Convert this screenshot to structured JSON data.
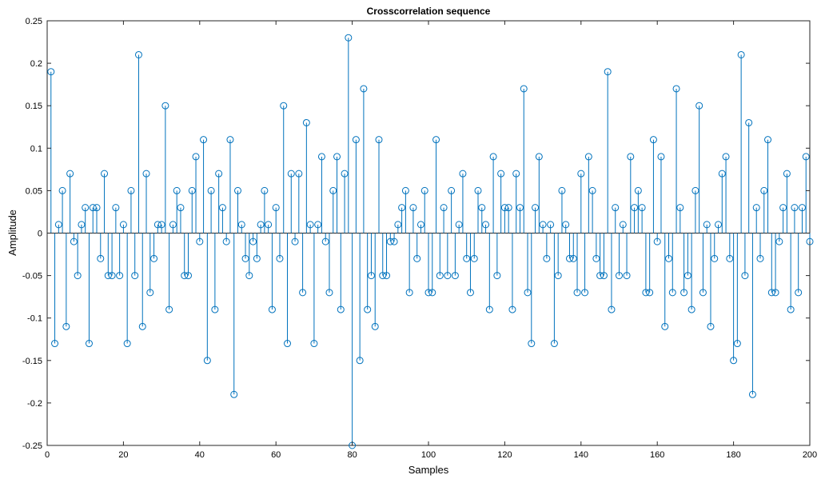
{
  "chart_data": {
    "type": "stem",
    "title": "Crosscorrelation sequence",
    "xlabel": "Samples",
    "ylabel": "Amplitude",
    "xlim": [
      0,
      200
    ],
    "ylim": [
      -0.25,
      0.25
    ],
    "xticks": [
      0,
      20,
      40,
      60,
      80,
      100,
      120,
      140,
      160,
      180,
      200
    ],
    "yticks": [
      -0.25,
      -0.2,
      -0.15,
      -0.1,
      -0.05,
      0,
      0.05,
      0.1,
      0.15,
      0.2,
      0.25
    ],
    "xtick_labels": [
      "0",
      "20",
      "40",
      "60",
      "80",
      "100",
      "120",
      "140",
      "160",
      "180",
      "200"
    ],
    "ytick_labels": [
      "-0.25",
      "-0.2",
      "-0.15",
      "-0.1",
      "-0.05",
      "0",
      "0.05",
      "0.1",
      "0.15",
      "0.2",
      "0.25"
    ],
    "grid": false,
    "series": [
      {
        "x": [
          1,
          2,
          3,
          4,
          5,
          6,
          7,
          8,
          9,
          10,
          11,
          12,
          13,
          14,
          15,
          16,
          17,
          18,
          19,
          20,
          21,
          22,
          23,
          24,
          25,
          26,
          27,
          28,
          29,
          30,
          31,
          32,
          33,
          34,
          35,
          36,
          37,
          38,
          39,
          40,
          41,
          42,
          43,
          44,
          45,
          46,
          47,
          48,
          49,
          50,
          51,
          52,
          53,
          54,
          55,
          56,
          57,
          58,
          59,
          60,
          61,
          62,
          63,
          64,
          65,
          66,
          67,
          68,
          69,
          70,
          71,
          72,
          73,
          74,
          75,
          76,
          77,
          78,
          79,
          80,
          81,
          82,
          83,
          84,
          85,
          86,
          87,
          88,
          89,
          90,
          91,
          92,
          93,
          94,
          95,
          96,
          97,
          98,
          99,
          100,
          101,
          102,
          103,
          104,
          105,
          106,
          107,
          108,
          109,
          110,
          111,
          112,
          113,
          114,
          115,
          116,
          117,
          118,
          119,
          120,
          121,
          122,
          123,
          124,
          125,
          126,
          127,
          128,
          129,
          130,
          131,
          132,
          133,
          134,
          135,
          136,
          137,
          138,
          139,
          140,
          141,
          142,
          143,
          144,
          145,
          146,
          147,
          148,
          149,
          150,
          151,
          152,
          153,
          154,
          155,
          156,
          157,
          158,
          159,
          160,
          161,
          162,
          163,
          164,
          165,
          166,
          167,
          168,
          169,
          170,
          171,
          172,
          173,
          174,
          175,
          176,
          177,
          178,
          179,
          180,
          181,
          182,
          183,
          184,
          185,
          186,
          187,
          188,
          189,
          190,
          191,
          192,
          193,
          194,
          195,
          196,
          197,
          198,
          199,
          200
        ],
        "values": [
          0.19,
          -0.13,
          0.01,
          0.05,
          -0.11,
          0.07,
          -0.01,
          -0.05,
          0.01,
          0.03,
          -0.13,
          0.03,
          0.03,
          -0.03,
          0.07,
          -0.05,
          -0.05,
          0.03,
          -0.05,
          0.01,
          -0.13,
          0.05,
          -0.05,
          0.21,
          -0.11,
          0.07,
          -0.07,
          -0.03,
          0.01,
          0.01,
          0.15,
          -0.09,
          0.01,
          0.05,
          0.03,
          -0.05,
          -0.05,
          0.05,
          0.09,
          -0.01,
          0.11,
          -0.15,
          0.05,
          -0.09,
          0.07,
          0.03,
          -0.01,
          0.11,
          -0.19,
          0.05,
          0.01,
          -0.03,
          -0.05,
          -0.01,
          -0.03,
          0.01,
          0.05,
          0.01,
          -0.09,
          0.03,
          -0.03,
          0.15,
          -0.13,
          0.07,
          -0.01,
          0.07,
          -0.07,
          0.13,
          0.01,
          -0.13,
          0.01,
          0.09,
          -0.01,
          -0.07,
          0.05,
          0.09,
          -0.09,
          0.07,
          0.23,
          -0.25,
          0.11,
          -0.15,
          0.17,
          -0.09,
          -0.05,
          -0.11,
          0.11,
          -0.05,
          -0.05,
          -0.01,
          -0.01,
          0.01,
          0.03,
          0.05,
          -0.07,
          0.03,
          -0.03,
          0.01,
          0.05,
          -0.07,
          -0.07,
          0.11,
          -0.05,
          0.03,
          -0.05,
          0.05,
          -0.05,
          0.01,
          0.07,
          -0.03,
          -0.07,
          -0.03,
          0.05,
          0.03,
          0.01,
          -0.09,
          0.09,
          -0.05,
          0.07,
          0.03,
          0.03,
          -0.09,
          0.07,
          0.03,
          0.17,
          -0.07,
          -0.13,
          0.03,
          0.09,
          0.01,
          -0.03,
          0.01,
          -0.13,
          -0.05,
          0.05,
          0.01,
          -0.03,
          -0.03,
          -0.07,
          0.07,
          -0.07,
          0.09,
          0.05,
          -0.03,
          -0.05,
          -0.05,
          0.19,
          -0.09,
          0.03,
          -0.05,
          0.01,
          -0.05,
          0.09,
          0.03,
          0.05,
          0.03,
          -0.07,
          -0.07,
          0.11,
          -0.01,
          0.09,
          -0.11,
          -0.03,
          -0.07,
          0.17,
          0.03,
          -0.07,
          -0.05,
          -0.09,
          0.05,
          0.15,
          -0.07,
          0.01,
          -0.11,
          -0.03,
          0.01,
          0.07,
          0.09,
          -0.03,
          -0.15,
          -0.13,
          0.21,
          -0.05,
          0.13,
          -0.19,
          0.03,
          -0.03,
          0.05,
          0.11,
          -0.07,
          -0.07,
          -0.01,
          0.03,
          0.07,
          -0.09,
          0.03,
          -0.07,
          0.03,
          0.09,
          -0.01
        ]
      }
    ]
  },
  "colors": {
    "stem": "#0072bd",
    "axes": "#262626",
    "text": "#000000",
    "background": "#ffffff"
  }
}
